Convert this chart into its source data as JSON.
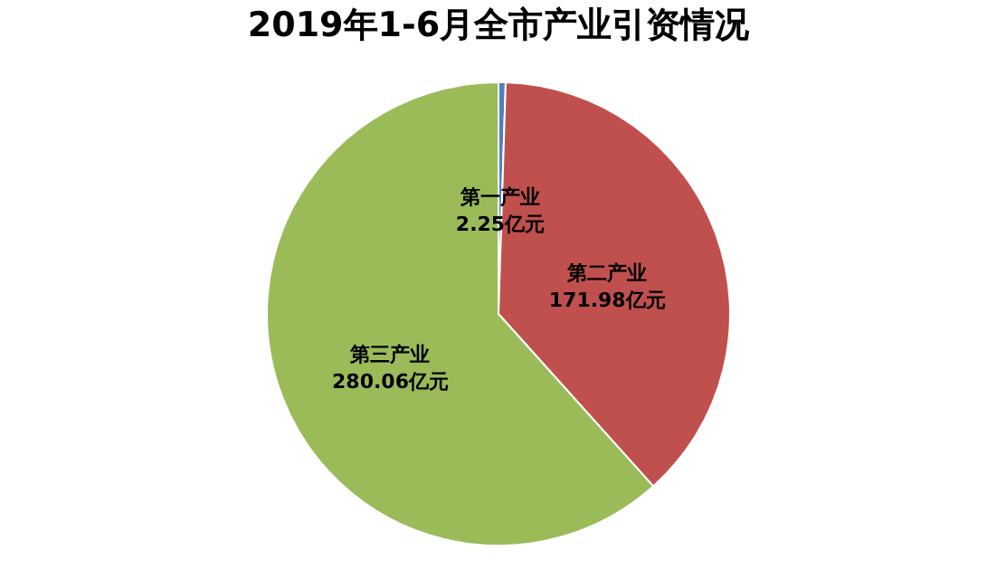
{
  "chart_data": {
    "type": "pie",
    "title": "2019年1-6月全市产业引资情况",
    "categories": [
      "第一产业",
      "第二产业",
      "第三产业"
    ],
    "values": [
      2.25,
      171.98,
      280.06
    ],
    "value_labels": [
      "2.25亿元",
      "171.98亿元",
      "280.06亿元"
    ],
    "colors": [
      "#4f81bd",
      "#c0504d",
      "#9bbb59"
    ],
    "legend": false
  }
}
